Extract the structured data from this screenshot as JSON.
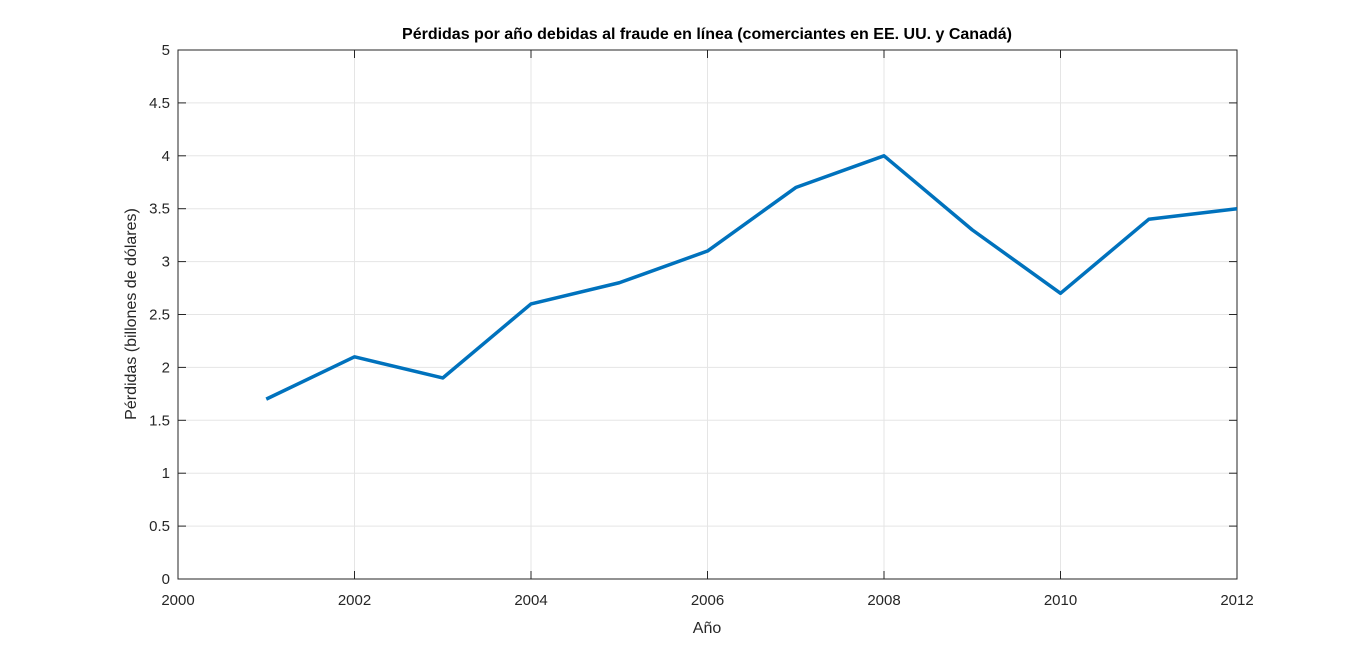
{
  "chart_data": {
    "type": "line",
    "title": "Pérdidas por año debidas al fraude en línea (comerciantes en EE. UU. y Canadá)",
    "xlabel": "Año",
    "ylabel": "Pérdidas (billones de dólares)",
    "x": [
      2001,
      2002,
      2003,
      2004,
      2005,
      2006,
      2007,
      2008,
      2009,
      2010,
      2011,
      2012
    ],
    "series": [
      {
        "values": [
          1.7,
          2.1,
          1.9,
          2.6,
          2.8,
          3.1,
          3.7,
          4.0,
          3.3,
          2.7,
          3.4,
          3.5
        ]
      }
    ],
    "xlim": [
      2000,
      2012
    ],
    "ylim": [
      0,
      5
    ],
    "xticks": [
      2000,
      2002,
      2004,
      2006,
      2008,
      2010,
      2012
    ],
    "xtick_labels": [
      "2000",
      "2002",
      "2004",
      "2006",
      "2008",
      "2010",
      "2012"
    ],
    "yticks": [
      0,
      0.5,
      1,
      1.5,
      2,
      2.5,
      3,
      3.5,
      4,
      4.5,
      5
    ],
    "ytick_labels": [
      "0",
      "0.5",
      "1",
      "1.5",
      "2",
      "2.5",
      "3",
      "3.5",
      "4",
      "4.5",
      "5"
    ],
    "grid": true,
    "legend": "none",
    "line_color": "#0072BD",
    "grid_color": "#e5e5e5",
    "axis_color": "#262626"
  }
}
